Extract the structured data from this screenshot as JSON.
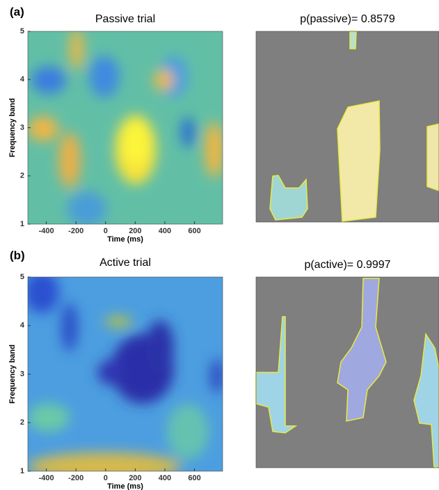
{
  "chart_data": [
    {
      "type": "heatmap",
      "panel": "(a)",
      "title": "Passive trial",
      "xlabel": "Time (ms)",
      "ylabel": "Frequency band",
      "xlim": [
        -525,
        790
      ],
      "xticks": [
        -400,
        -200,
        0,
        200,
        400,
        600
      ],
      "ylim": [
        1,
        5
      ],
      "yticks": [
        1,
        2,
        3,
        4,
        5
      ]
    },
    {
      "type": "heatmap",
      "title": "p(passive)= 0.8579"
    },
    {
      "type": "heatmap",
      "panel": "(b)",
      "title": "Active trial",
      "xlabel": "Time (ms)",
      "ylabel": "Frequency band",
      "xlim": [
        -525,
        790
      ],
      "xticks": [
        -400,
        -200,
        0,
        200,
        400,
        600
      ],
      "ylim": [
        1,
        5
      ],
      "yticks": [
        1,
        2,
        3,
        4,
        5
      ]
    },
    {
      "type": "heatmap",
      "title": "p(active)= 0.9997"
    }
  ]
}
